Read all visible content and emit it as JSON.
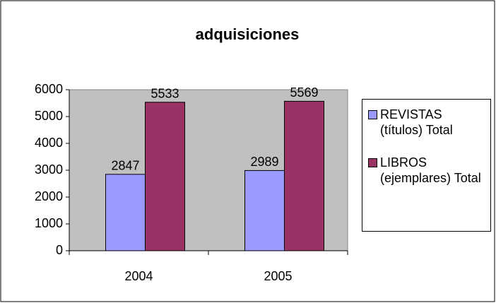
{
  "chart_data": {
    "type": "bar",
    "title": "adquisiciones",
    "categories": [
      "2004",
      "2005"
    ],
    "series": [
      {
        "name": "REVISTAS (títulos) Total",
        "color": "#9999ff",
        "values": [
          2847,
          2989
        ]
      },
      {
        "name": "LIBROS (ejemplares) Total",
        "color": "#993366",
        "values": [
          5533,
          5569
        ]
      }
    ],
    "ylim": [
      0,
      6000
    ],
    "yticks": [
      0,
      1000,
      2000,
      3000,
      4000,
      5000,
      6000
    ],
    "grid": false,
    "legend": "right"
  }
}
